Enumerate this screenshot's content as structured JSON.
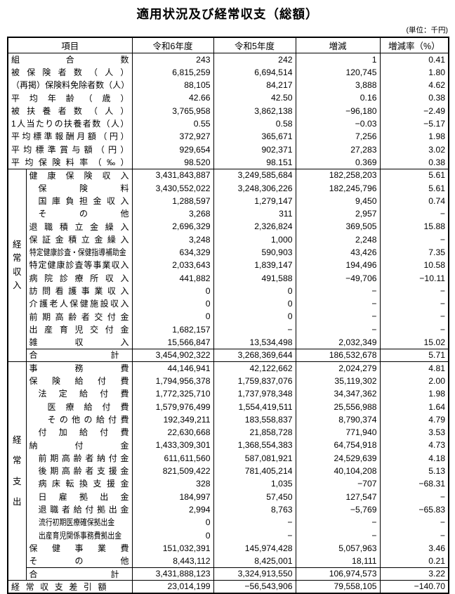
{
  "title": "適用状況及び経常収支（総額）",
  "unit_note": "(単位：千円)",
  "table": {
    "columns": [
      "項目",
      "令和6年度",
      "令和5年度",
      "増減",
      "増減率（%）"
    ],
    "summary_rows": [
      {
        "label": "組合数",
        "indent": 0,
        "values": [
          "243",
          "242",
          "1",
          "0.41"
        ]
      },
      {
        "label": "被保険者数（人）",
        "indent": 0,
        "values": [
          "6,815,259",
          "6,694,514",
          "120,745",
          "1.80"
        ]
      },
      {
        "label": "（再掲）保険料免除者数（人）",
        "indent": 0,
        "values": [
          "88,105",
          "84,217",
          "3,888",
          "4.62"
        ]
      },
      {
        "label": "平均年齢（歳）",
        "indent": 0,
        "values": [
          "42.66",
          "42.50",
          "0.16",
          "0.38"
        ]
      },
      {
        "label": "被扶養者数（人）",
        "indent": 0,
        "values": [
          "3,765,958",
          "3,862,138",
          "−96,180",
          "−2.49"
        ]
      },
      {
        "label": "1人当たりの扶養者数（人）",
        "indent": 0,
        "values": [
          "0.55",
          "0.58",
          "−0.03",
          "−5.17"
        ]
      },
      {
        "label": "平均標準報酬月額（円）",
        "indent": 0,
        "values": [
          "372,927",
          "365,671",
          "7,256",
          "1.98"
        ]
      },
      {
        "label": "平均標準賞与額（円）",
        "indent": 0,
        "values": [
          "929,654",
          "902,371",
          "27,283",
          "3.02"
        ]
      },
      {
        "label": "平均保険料率（‰）",
        "indent": 0,
        "values": [
          "98.520",
          "98.151",
          "0.369",
          "0.38"
        ]
      }
    ],
    "income": {
      "vertical_label": "経常収入",
      "rows": [
        {
          "label": "健康保険収入",
          "indent": 0,
          "values": [
            "3,431,843,887",
            "3,249,585,684",
            "182,258,203",
            "5.61"
          ]
        },
        {
          "label": "保険料",
          "indent": 1,
          "values": [
            "3,430,552,022",
            "3,248,306,226",
            "182,245,796",
            "5.61"
          ]
        },
        {
          "label": "国庫負担金収入",
          "indent": 1,
          "values": [
            "1,288,597",
            "1,279,147",
            "9,450",
            "0.74"
          ]
        },
        {
          "label": "その他",
          "indent": 1,
          "values": [
            "3,268",
            "311",
            "2,957",
            "−"
          ]
        },
        {
          "label": "退職積立金繰入",
          "indent": 0,
          "values": [
            "2,696,329",
            "2,326,824",
            "369,505",
            "15.88"
          ]
        },
        {
          "label": "保証金積立金繰入",
          "indent": 0,
          "values": [
            "3,248",
            "1,000",
            "2,248",
            "−"
          ]
        },
        {
          "label": "特定健康診査・保健指導補助金",
          "indent": 0,
          "squeeze": true,
          "values": [
            "634,329",
            "590,903",
            "43,426",
            "7.35"
          ]
        },
        {
          "label": "特定健康診査等事業収入",
          "indent": 0,
          "values": [
            "2,033,643",
            "1,839,147",
            "194,496",
            "10.58"
          ]
        },
        {
          "label": "病院診療所収入",
          "indent": 0,
          "values": [
            "441,882",
            "491,588",
            "−49,706",
            "−10.11"
          ]
        },
        {
          "label": "訪問看護事業収入",
          "indent": 0,
          "values": [
            "0",
            "0",
            "−",
            "−"
          ]
        },
        {
          "label": "介護老人保健施設収入",
          "indent": 0,
          "values": [
            "0",
            "0",
            "−",
            "−"
          ]
        },
        {
          "label": "前期高齢者交付金",
          "indent": 0,
          "values": [
            "0",
            "0",
            "−",
            "−"
          ]
        },
        {
          "label": "出産育児交付金",
          "indent": 0,
          "values": [
            "1,682,157",
            "−",
            "−",
            "−"
          ]
        },
        {
          "label": "雑収入",
          "indent": 0,
          "values": [
            "15,566,847",
            "13,534,498",
            "2,032,349",
            "15.02"
          ]
        },
        {
          "label": "合計",
          "total": true,
          "values": [
            "3,454,902,322",
            "3,268,369,644",
            "186,532,678",
            "5.71"
          ]
        }
      ]
    },
    "expense": {
      "vertical_label": "経常支出",
      "rows": [
        {
          "label": "事務費",
          "indent": 0,
          "values": [
            "44,146,941",
            "42,122,662",
            "2,024,279",
            "4.81"
          ]
        },
        {
          "label": "保険給付費",
          "indent": 0,
          "values": [
            "1,794,956,378",
            "1,759,837,076",
            "35,119,302",
            "2.00"
          ]
        },
        {
          "label": "法定給付費",
          "indent": 1,
          "values": [
            "1,772,325,710",
            "1,737,978,348",
            "34,347,362",
            "1.98"
          ]
        },
        {
          "label": "医療給付費",
          "indent": 2,
          "values": [
            "1,579,976,499",
            "1,554,419,511",
            "25,556,988",
            "1.64"
          ]
        },
        {
          "label": "その他の給付費",
          "indent": 2,
          "values": [
            "192,349,211",
            "183,558,837",
            "8,790,374",
            "4.79"
          ]
        },
        {
          "label": "付加給付費",
          "indent": 1,
          "values": [
            "22,630,668",
            "21,858,728",
            "771,940",
            "3.53"
          ]
        },
        {
          "label": "納付金",
          "indent": 0,
          "values": [
            "1,433,309,301",
            "1,368,554,383",
            "64,754,918",
            "4.73"
          ]
        },
        {
          "label": "前期高齢者納付金",
          "indent": 1,
          "values": [
            "611,611,560",
            "587,081,921",
            "24,529,639",
            "4.18"
          ]
        },
        {
          "label": "後期高齢者支援金",
          "indent": 1,
          "values": [
            "821,509,422",
            "781,405,214",
            "40,104,208",
            "5.13"
          ]
        },
        {
          "label": "病床転換支援金",
          "indent": 1,
          "values": [
            "328",
            "1,035",
            "−707",
            "−68.31"
          ]
        },
        {
          "label": "日雇拠出金",
          "indent": 1,
          "values": [
            "184,997",
            "57,450",
            "127,547",
            "−"
          ]
        },
        {
          "label": "退職者給付拠出金",
          "indent": 1,
          "values": [
            "2,994",
            "8,763",
            "−5,769",
            "−65.83"
          ]
        },
        {
          "label": "流行初期医療確保拠出金",
          "indent": 1,
          "squeeze": true,
          "values": [
            "0",
            "−",
            "−",
            "−"
          ]
        },
        {
          "label": "出産育児関係事務費拠出金",
          "indent": 1,
          "squeeze": true,
          "values": [
            "0",
            "−",
            "−",
            "−"
          ]
        },
        {
          "label": "保健事業費",
          "indent": 0,
          "values": [
            "151,032,391",
            "145,974,428",
            "5,057,963",
            "3.46"
          ]
        },
        {
          "label": "その他",
          "indent": 0,
          "values": [
            "8,443,112",
            "8,425,001",
            "18,111",
            "0.21"
          ]
        },
        {
          "label": "合計",
          "total": true,
          "values": [
            "3,431,888,123",
            "3,324,913,550",
            "106,974,573",
            "3.22"
          ]
        }
      ]
    },
    "balance": {
      "label": "経常収支差引額",
      "values": [
        "23,014,199",
        "−56,543,906",
        "79,558,105",
        "−140.70"
      ]
    }
  }
}
